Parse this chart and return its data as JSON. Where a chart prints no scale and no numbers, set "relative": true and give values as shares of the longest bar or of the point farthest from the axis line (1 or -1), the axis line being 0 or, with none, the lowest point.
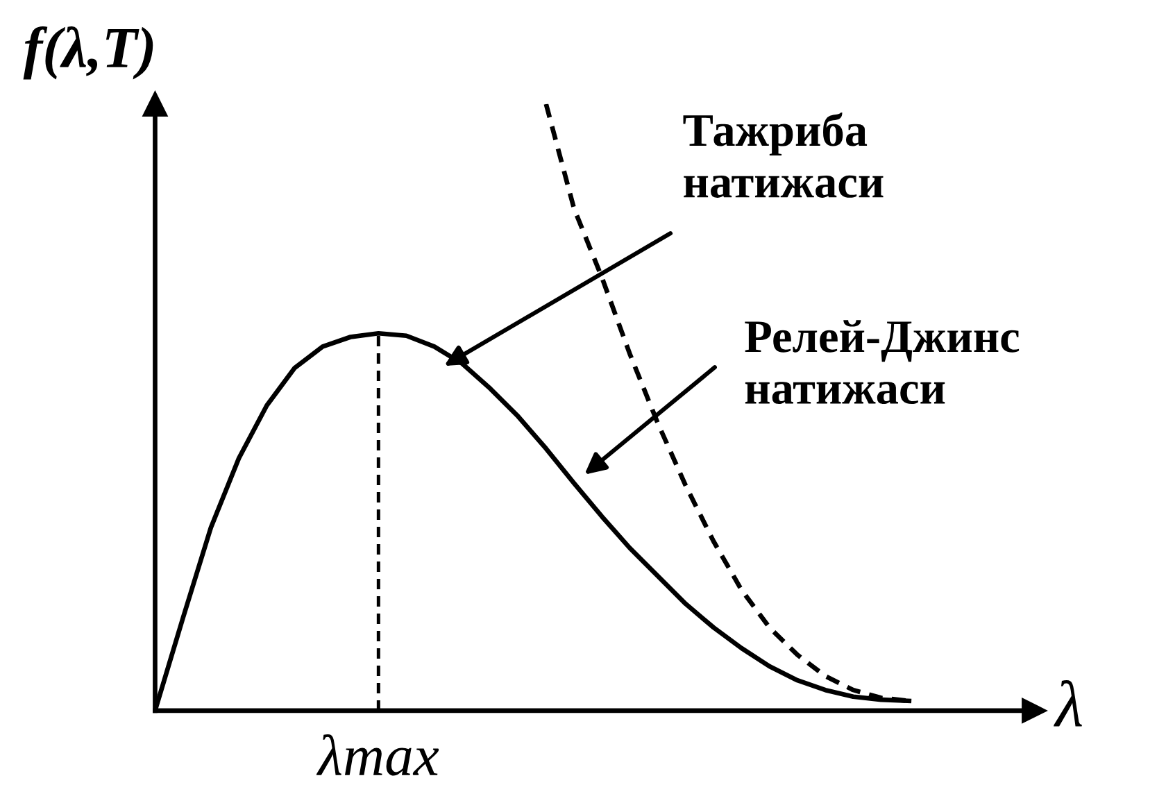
{
  "chart_data": {
    "type": "line",
    "relative": true,
    "xlabel": "λ",
    "ylabel": "f(λ,T)",
    "categories": [
      null,
      null,
      null,
      null,
      null,
      null,
      null,
      null,
      null,
      null,
      null,
      null,
      null,
      null,
      null,
      null,
      null,
      null,
      null,
      null,
      null,
      null,
      null,
      null,
      null,
      null,
      null,
      null
    ],
    "series": [
      {
        "color": "#000000",
        "line_style": "solid",
        "values": [
          0,
          0.153,
          0.302,
          0.416,
          0.503,
          0.565,
          0.6,
          0.616,
          0.622,
          0.618,
          0.6,
          0.572,
          0.531,
          0.485,
          0.432,
          0.375,
          0.32,
          0.268,
          0.222,
          0.176,
          0.137,
          0.103,
          0.073,
          0.05,
          0.034,
          0.023,
          0.018,
          0.016
        ]
      },
      {
        "color": "#000000",
        "line_style": "dashed",
        "values": [
          null,
          null,
          null,
          null,
          null,
          null,
          null,
          null,
          null,
          null,
          null,
          null,
          null,
          null,
          1,
          0.828,
          0.714,
          0.588,
          0.474,
          0.371,
          0.279,
          0.199,
          0.137,
          0.092,
          0.057,
          0.034,
          0.021,
          0.016
        ]
      }
    ],
    "annotations": [
      "Тажриба натижаси",
      "Релей-Джинс натижаси",
      "λmax"
    ]
  }
}
